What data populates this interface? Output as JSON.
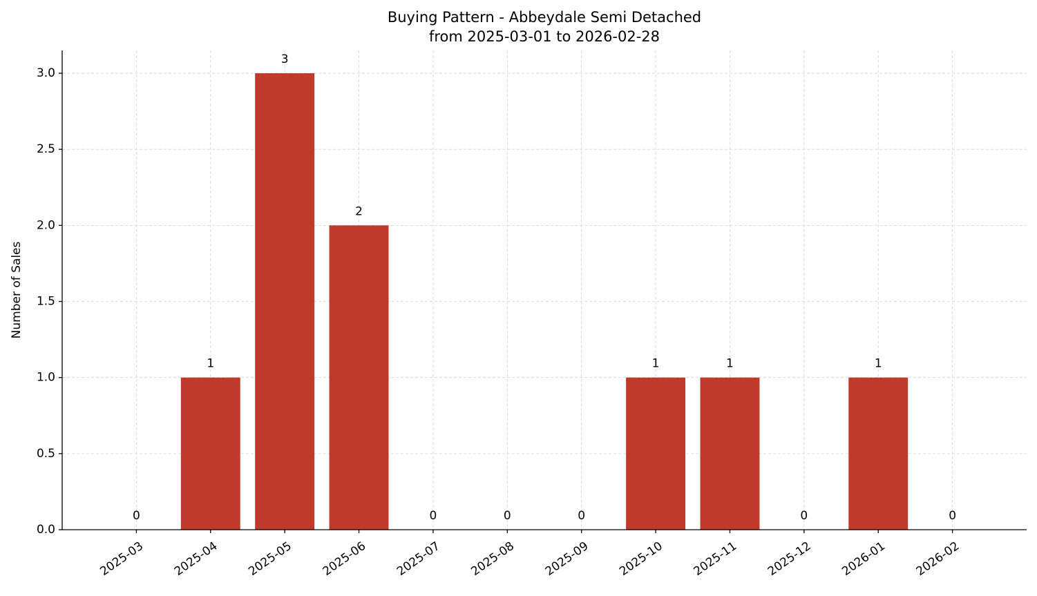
{
  "chart_data": {
    "type": "bar",
    "title": "Buying Pattern - Abbeydale Semi Detached",
    "subtitle": "from 2025-03-01 to 2026-02-28",
    "y_label": "Number of Sales",
    "categories": [
      "2025-03",
      "2025-04",
      "2025-05",
      "2025-06",
      "2025-07",
      "2025-08",
      "2025-09",
      "2025-10",
      "2025-11",
      "2025-12",
      "2026-01",
      "2026-02"
    ],
    "values": [
      0,
      1,
      3,
      2,
      0,
      0,
      0,
      1,
      1,
      0,
      1,
      0
    ],
    "color": "#c0392b",
    "ylim": [
      0,
      3.15
    ],
    "yticks": [
      {
        "value": 0,
        "label": "0.0"
      },
      {
        "value": 0.5,
        "label": "0.5"
      },
      {
        "value": 1,
        "label": "1.0"
      },
      {
        "value": 1.5,
        "label": "1.5"
      },
      {
        "value": 2,
        "label": "2.0"
      },
      {
        "value": 2.5,
        "label": "2.5"
      },
      {
        "value": 3,
        "label": "3.0"
      }
    ],
    "grid": true
  }
}
